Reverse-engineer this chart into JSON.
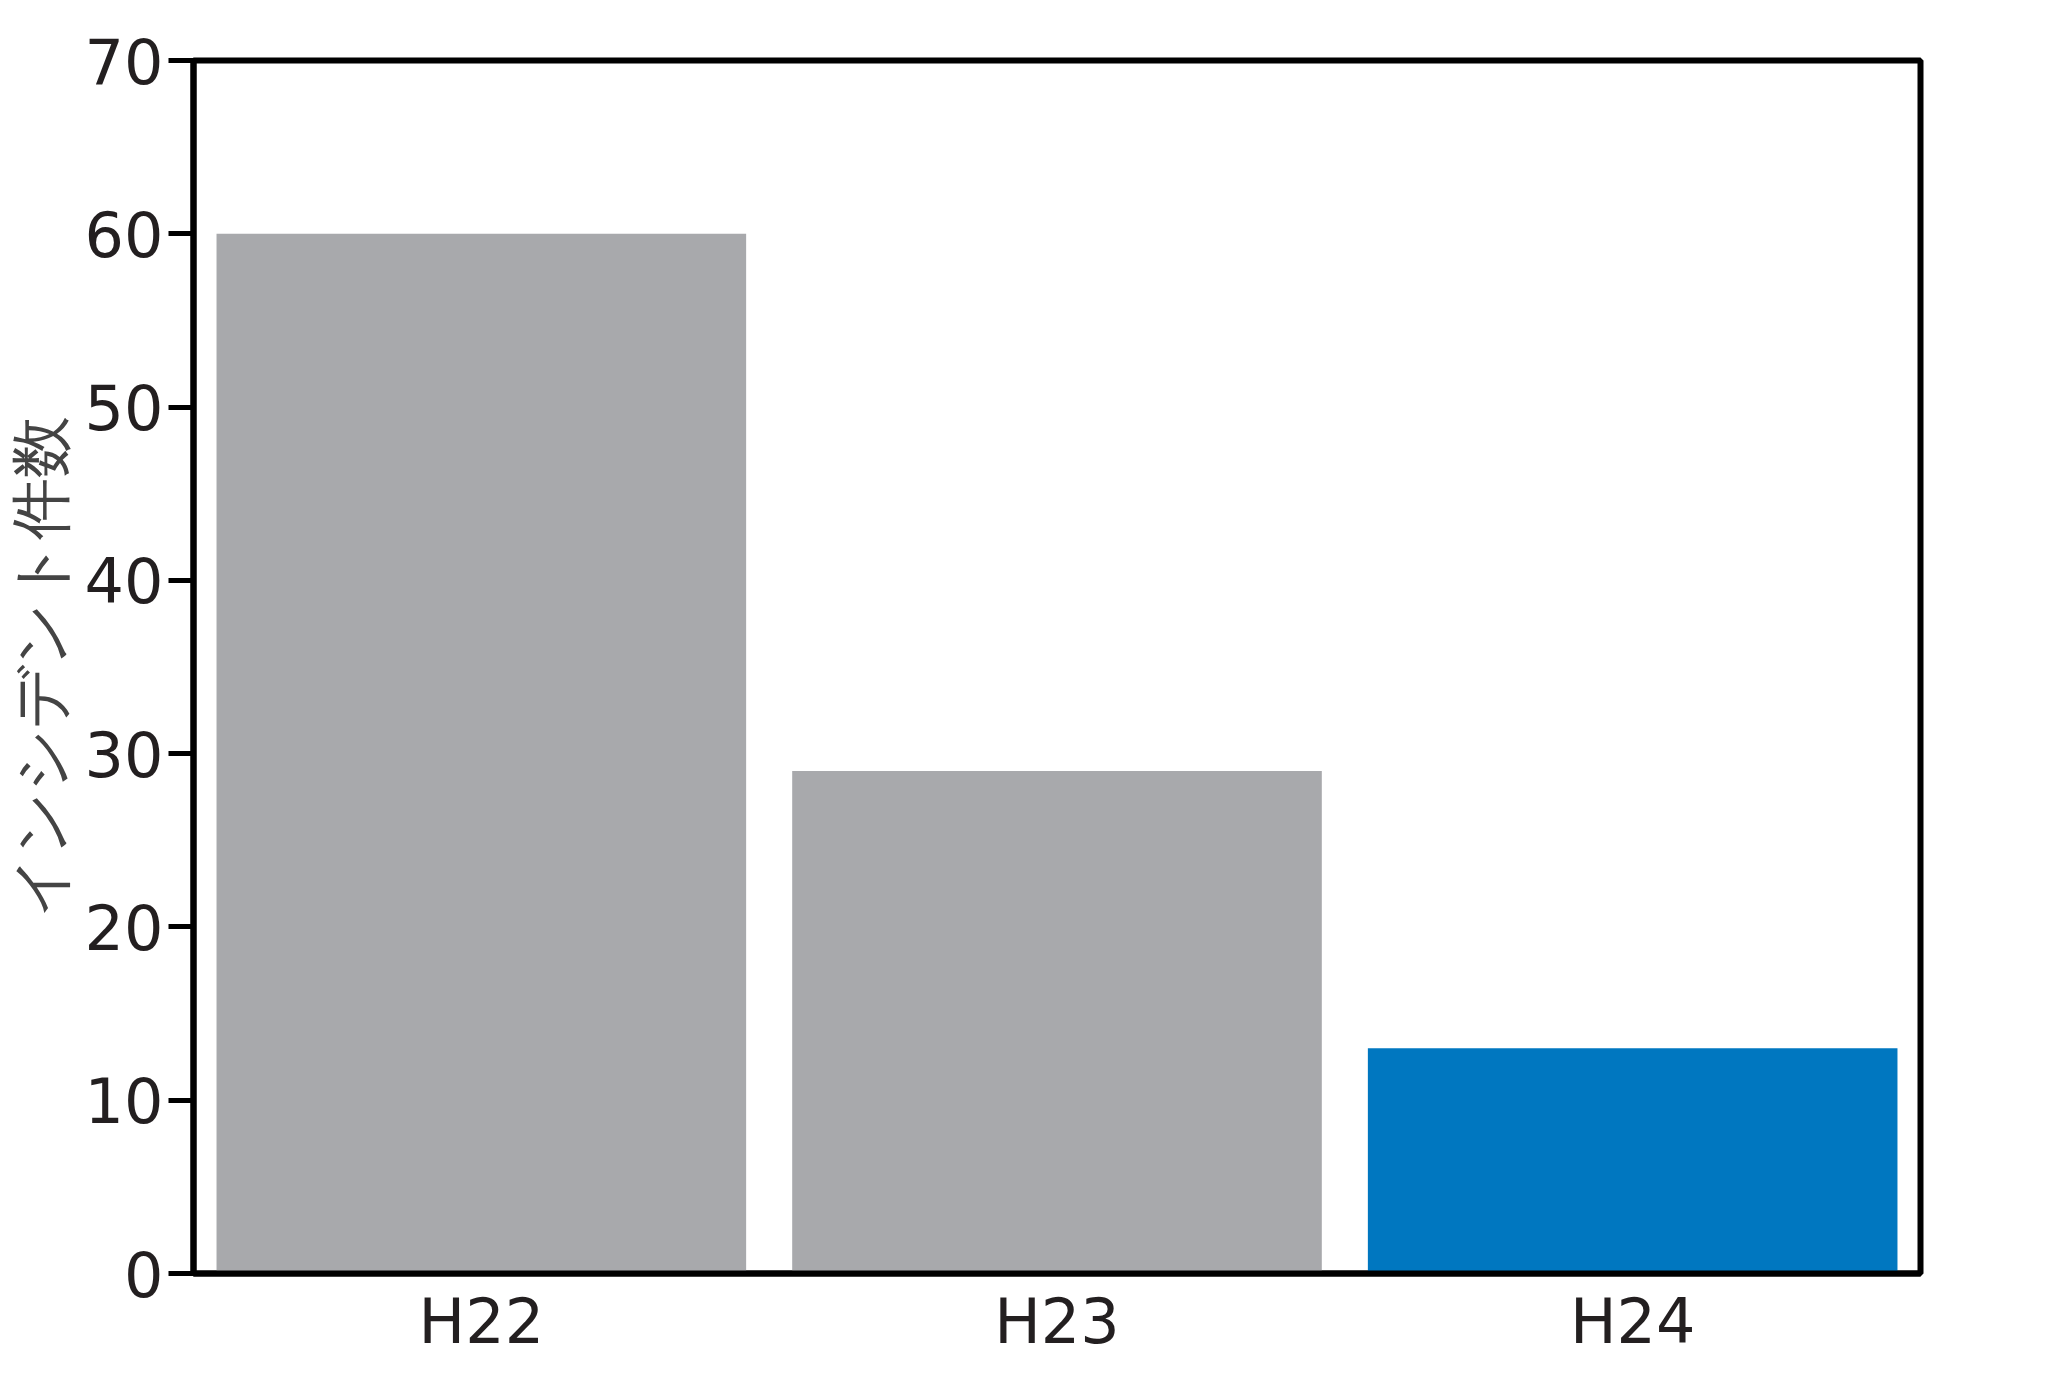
{
  "chart_data": {
    "type": "bar",
    "ylabel": "インシデント件数",
    "categories": [
      "H22",
      "H23",
      "H24"
    ],
    "values": [
      60,
      29,
      13
    ],
    "colors": [
      "#a8a9ac",
      "#a8a9ac",
      "#0077c0"
    ],
    "ylim": [
      0,
      70
    ],
    "yticks": [
      0,
      10,
      20,
      30,
      40,
      50,
      60,
      70
    ],
    "grid": false
  }
}
